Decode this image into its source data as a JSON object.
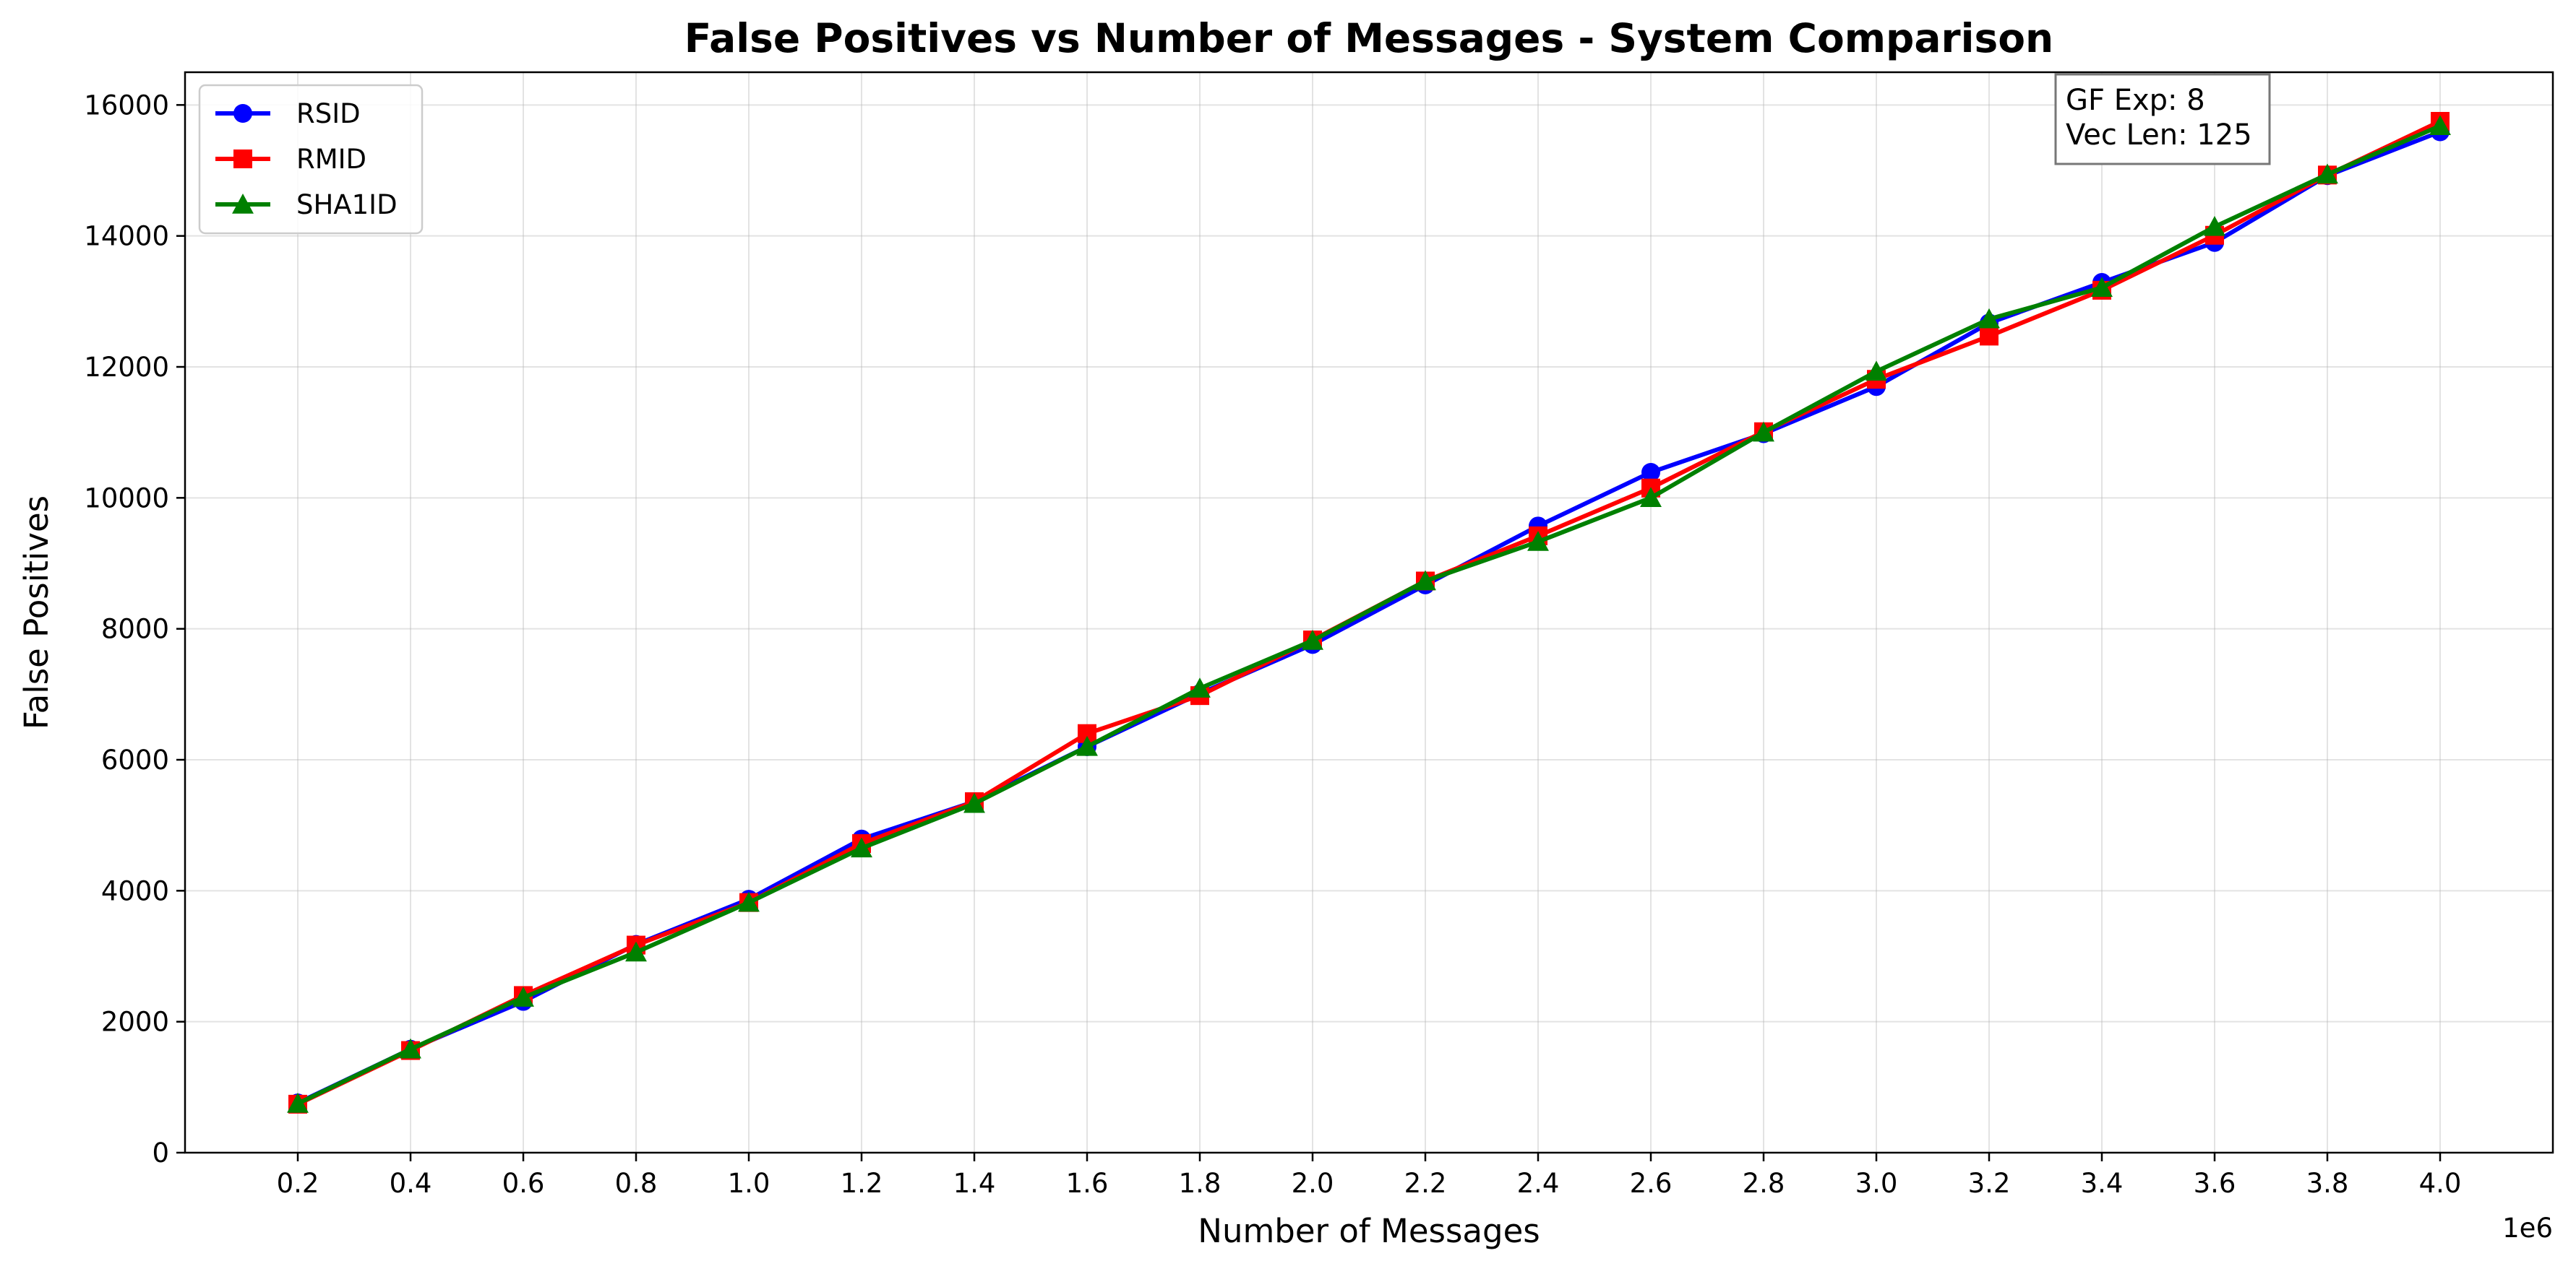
{
  "chart_data": {
    "type": "line",
    "title": "False Positives vs Number of Messages - System Comparison",
    "xlabel": "Number of Messages",
    "ylabel": "False Positives",
    "x_offset_label": "1e6",
    "x_scale": 1000000,
    "x": [
      200000,
      400000,
      600000,
      800000,
      1000000,
      1200000,
      1400000,
      1600000,
      1800000,
      2000000,
      2200000,
      2400000,
      2600000,
      2800000,
      3000000,
      3200000,
      3400000,
      3600000,
      3800000,
      4000000
    ],
    "x_tick_labels": [
      "0.2",
      "0.4",
      "0.6",
      "0.8",
      "1.0",
      "1.2",
      "1.4",
      "1.6",
      "1.8",
      "2.0",
      "2.2",
      "2.4",
      "2.6",
      "2.8",
      "3.0",
      "3.2",
      "3.4",
      "3.6",
      "3.8",
      "4.0"
    ],
    "xlim": [
      0,
      4200000
    ],
    "ylim": [
      0,
      16500
    ],
    "y_ticks": [
      0,
      2000,
      4000,
      6000,
      8000,
      10000,
      12000,
      14000,
      16000
    ],
    "y_tick_labels": [
      "0",
      "2000",
      "4000",
      "6000",
      "8000",
      "10000",
      "12000",
      "14000",
      "16000"
    ],
    "grid": true,
    "legend_position": "top-left",
    "series": [
      {
        "name": "RSID",
        "color": "#0000ff",
        "marker": "circle",
        "values": [
          760,
          1580,
          2310,
          3180,
          3870,
          4790,
          5360,
          6200,
          7010,
          7760,
          8670,
          9570,
          10390,
          10980,
          11700,
          12670,
          13290,
          13900,
          14920,
          15590
        ]
      },
      {
        "name": "RMID",
        "color": "#ff0000",
        "marker": "square",
        "values": [
          740,
          1560,
          2400,
          3170,
          3820,
          4720,
          5360,
          6400,
          6980,
          7830,
          8730,
          9420,
          10150,
          11010,
          11810,
          12470,
          13170,
          14010,
          14930,
          15750
        ]
      },
      {
        "name": "SHA1ID",
        "color": "#008000",
        "marker": "triangle",
        "values": [
          750,
          1580,
          2370,
          3060,
          3820,
          4650,
          5330,
          6200,
          7090,
          7820,
          8730,
          9330,
          10000,
          11000,
          11930,
          12730,
          13210,
          14140,
          14940,
          15680
        ]
      }
    ],
    "annotation": {
      "lines": [
        "GF Exp: 8",
        "Vec Len: 125"
      ],
      "position": "top-right"
    }
  }
}
